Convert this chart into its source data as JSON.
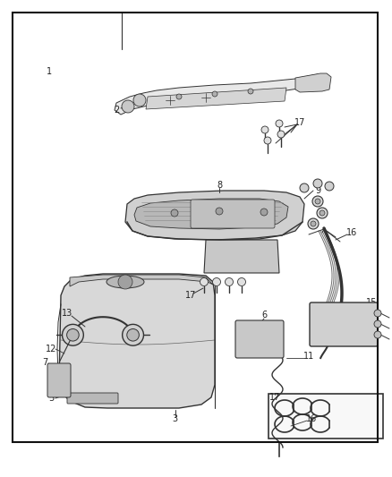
{
  "bg_color": "#ffffff",
  "border_color": "#111111",
  "line_color": "#333333",
  "text_color": "#222222",
  "fig_width": 4.38,
  "fig_height": 5.33,
  "dpi": 100
}
